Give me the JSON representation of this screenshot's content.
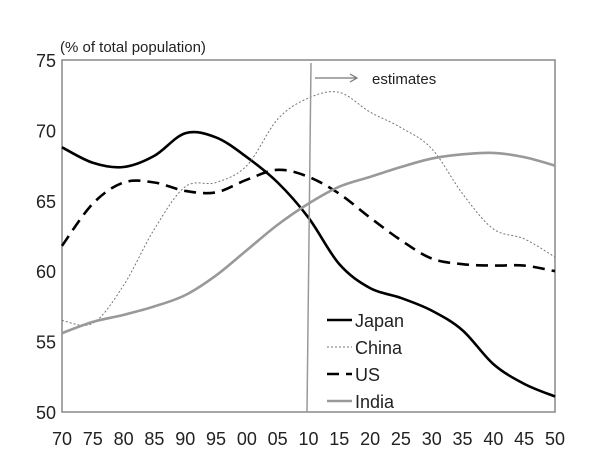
{
  "chart_data": {
    "type": "line",
    "ylabel": "(% of total population)",
    "x_tick_labels": [
      "70",
      "75",
      "80",
      "85",
      "90",
      "95",
      "00",
      "05",
      "10",
      "15",
      "20",
      "25",
      "30",
      "35",
      "40",
      "45",
      "50"
    ],
    "x": [
      1970,
      1975,
      1980,
      1985,
      1990,
      1995,
      2000,
      2005,
      2010,
      2015,
      2020,
      2025,
      2030,
      2035,
      2040,
      2045,
      2050
    ],
    "xlim": [
      1970,
      2050
    ],
    "ylim": [
      50,
      75
    ],
    "y_ticks": [
      50,
      55,
      60,
      65,
      70,
      75
    ],
    "grid": false,
    "legend_position": "bottom-right",
    "annotation": {
      "label": "estimates",
      "x": 2010
    },
    "series": [
      {
        "name": "Japan",
        "style": "solid",
        "color": "#000000",
        "values": [
          68.8,
          67.7,
          67.4,
          68.2,
          69.8,
          69.5,
          68.1,
          66.3,
          63.8,
          60.5,
          58.8,
          58.1,
          57.2,
          55.8,
          53.4,
          52.0,
          51.1
        ]
      },
      {
        "name": "China",
        "style": "dotted",
        "color": "#777777",
        "values": [
          56.5,
          56.3,
          59.0,
          63.0,
          66.0,
          66.3,
          67.5,
          70.8,
          72.3,
          72.7,
          71.3,
          70.2,
          68.7,
          65.5,
          63.0,
          62.3,
          61.0
        ]
      },
      {
        "name": "US",
        "style": "dashed",
        "color": "#000000",
        "values": [
          61.8,
          64.8,
          66.3,
          66.3,
          65.7,
          65.6,
          66.5,
          67.2,
          66.7,
          65.5,
          63.8,
          62.2,
          60.9,
          60.5,
          60.4,
          60.4,
          60.0
        ]
      },
      {
        "name": "India",
        "style": "solid",
        "color": "#999999",
        "values": [
          55.6,
          56.4,
          56.9,
          57.5,
          58.3,
          59.7,
          61.5,
          63.3,
          64.8,
          66.0,
          66.7,
          67.4,
          68.0,
          68.3,
          68.4,
          68.1,
          67.5
        ]
      }
    ]
  }
}
